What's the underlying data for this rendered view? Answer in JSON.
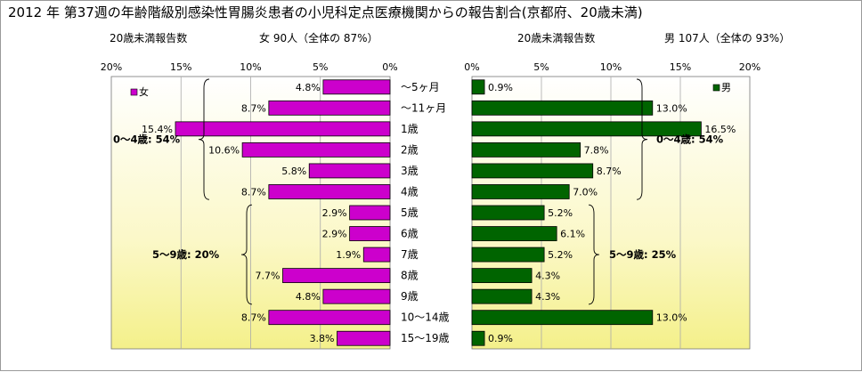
{
  "title": "2012 年 第37週の年齢階級別感染性胃腸炎患者の小児科定点医療機関からの報告割合(京都府、20歳未満)",
  "chart_data": [
    {
      "type": "bar",
      "orientation": "horizontal",
      "side": "left",
      "subtitle_left": "20歳未満報告数",
      "subtitle_right": "女  90人（全体の  87%）",
      "legend": "女",
      "legend_color": "#cc00cc",
      "categories": [
        "～5ヶ月",
        "～11ヶ月",
        "1歳",
        "2歳",
        "3歳",
        "4歳",
        "5歳",
        "6歳",
        "7歳",
        "8歳",
        "9歳",
        "10～14歳",
        "15～19歳"
      ],
      "values": [
        4.8,
        8.7,
        15.4,
        10.6,
        5.8,
        8.7,
        2.9,
        2.9,
        1.9,
        7.7,
        4.8,
        8.7,
        3.8
      ],
      "value_labels": [
        "4.8%",
        "8.7%",
        "15.4%",
        "10.6%",
        "5.8%",
        "8.7%",
        "2.9%",
        "2.9%",
        "1.9%",
        "7.7%",
        "4.8%",
        "8.7%",
        "3.8%"
      ],
      "xlim": [
        0,
        20
      ],
      "reversed": true,
      "ticks": [
        "20%",
        "15%",
        "10%",
        "5%",
        "0%"
      ],
      "tick_values": [
        20,
        15,
        10,
        5,
        0
      ],
      "annotations": [
        {
          "text": "0～4歳: 54%",
          "from": 0,
          "to": 5
        },
        {
          "text": "5～9歳: 20%",
          "from": 6,
          "to": 10
        }
      ]
    },
    {
      "type": "bar",
      "orientation": "horizontal",
      "side": "right",
      "subtitle_left": "20歳未満報告数",
      "subtitle_right": "男  107人（全体の  93%）",
      "legend": "男",
      "legend_color": "#006400",
      "categories": [
        "～5ヶ月",
        "～11ヶ月",
        "1歳",
        "2歳",
        "3歳",
        "4歳",
        "5歳",
        "6歳",
        "7歳",
        "8歳",
        "9歳",
        "10～14歳",
        "15～19歳"
      ],
      "values": [
        0.9,
        13.0,
        16.5,
        7.8,
        8.7,
        7.0,
        5.2,
        6.1,
        5.2,
        4.3,
        4.3,
        13.0,
        0.9
      ],
      "value_labels": [
        "0.9%",
        "13.0%",
        "16.5%",
        "7.8%",
        "8.7%",
        "7.0%",
        "5.2%",
        "6.1%",
        "5.2%",
        "4.3%",
        "4.3%",
        "13.0%",
        "0.9%"
      ],
      "xlim": [
        0,
        20
      ],
      "ticks": [
        "0%",
        "5%",
        "10%",
        "15%",
        "20%"
      ],
      "tick_values": [
        0,
        5,
        10,
        15,
        20
      ],
      "annotations": [
        {
          "text": "0～4歳: 54%",
          "from": 0,
          "to": 5
        },
        {
          "text": "5～9歳: 25%",
          "from": 6,
          "to": 10
        }
      ]
    }
  ]
}
